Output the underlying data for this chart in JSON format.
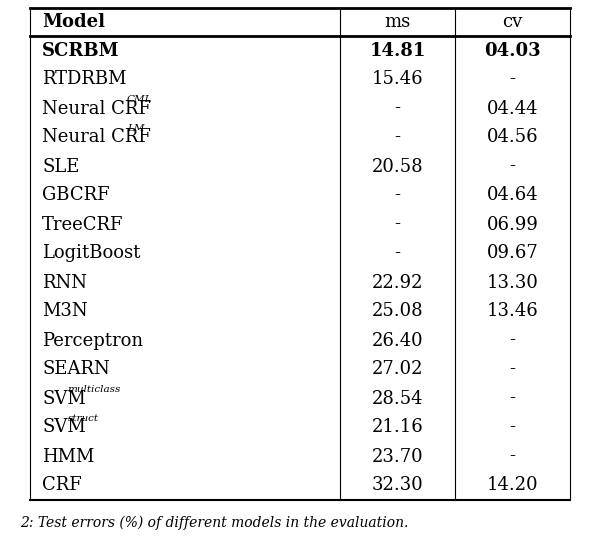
{
  "caption": "2: Test errors (%) of different models in the evaluation.",
  "headers": [
    "Model",
    "ms",
    "cv"
  ],
  "rows": [
    [
      "SCRBM",
      "14.81",
      "04.03"
    ],
    [
      "RTDRBM",
      "15.46",
      "-"
    ],
    [
      "Neural CRF",
      "-",
      "04.44"
    ],
    [
      "Neural CRF",
      "-",
      "04.56"
    ],
    [
      "SLE",
      "20.58",
      "-"
    ],
    [
      "GBCRF",
      "-",
      "04.64"
    ],
    [
      "TreeCRF",
      "-",
      "06.99"
    ],
    [
      "LogitBoost",
      "-",
      "09.67"
    ],
    [
      "RNN",
      "22.92",
      "13.30"
    ],
    [
      "M3N",
      "25.08",
      "13.46"
    ],
    [
      "Perceptron",
      "26.40",
      "-"
    ],
    [
      "SEARN",
      "27.02",
      "-"
    ],
    [
      "SVM",
      "28.54",
      "-"
    ],
    [
      "SVM",
      "21.16",
      "-"
    ],
    [
      "HMM",
      "23.70",
      "-"
    ],
    [
      "CRF",
      "32.30",
      "14.20"
    ]
  ],
  "row_superscripts": [
    "",
    "",
    "CML",
    "LM",
    "",
    "",
    "",
    "",
    "",
    "",
    "",
    "",
    "multiclass",
    "struct",
    "",
    ""
  ],
  "bold_row": 0,
  "fig_width": 6.0,
  "fig_height": 5.42
}
